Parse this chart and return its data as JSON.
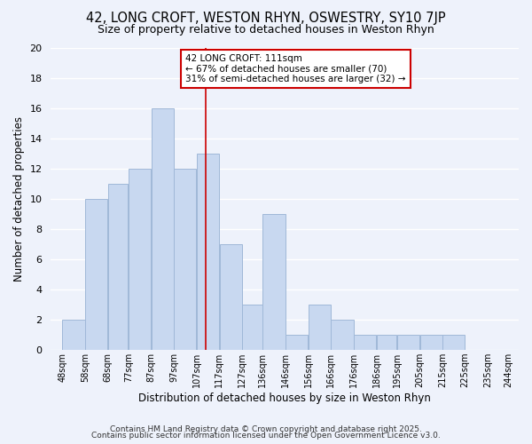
{
  "title": "42, LONG CROFT, WESTON RHYN, OSWESTRY, SY10 7JP",
  "subtitle": "Size of property relative to detached houses in Weston Rhyn",
  "xlabel": "Distribution of detached houses by size in Weston Rhyn",
  "ylabel": "Number of detached properties",
  "bar_color": "#c8d8f0",
  "bar_edge_color": "#a0b8d8",
  "background_color": "#eef2fb",
  "grid_color": "#ffffff",
  "bins": [
    48,
    58,
    68,
    77,
    87,
    97,
    107,
    117,
    127,
    136,
    146,
    156,
    166,
    176,
    186,
    195,
    205,
    215,
    225,
    235,
    244
  ],
  "bin_labels": [
    "48sqm",
    "58sqm",
    "68sqm",
    "77sqm",
    "87sqm",
    "97sqm",
    "107sqm",
    "117sqm",
    "127sqm",
    "136sqm",
    "146sqm",
    "156sqm",
    "166sqm",
    "176sqm",
    "186sqm",
    "195sqm",
    "205sqm",
    "215sqm",
    "225sqm",
    "235sqm",
    "244sqm"
  ],
  "counts": [
    2,
    10,
    11,
    12,
    16,
    12,
    13,
    7,
    3,
    9,
    1,
    3,
    2,
    1,
    1,
    1,
    1,
    1,
    0,
    0
  ],
  "ylim": [
    0,
    20
  ],
  "yticks": [
    0,
    2,
    4,
    6,
    8,
    10,
    12,
    14,
    16,
    18,
    20
  ],
  "vline_x": 111,
  "vline_color": "#cc0000",
  "annotation_text": "42 LONG CROFT: 111sqm\n← 67% of detached houses are smaller (70)\n31% of semi-detached houses are larger (32) →",
  "annotation_box_edge": "#cc0000",
  "footer1": "Contains HM Land Registry data © Crown copyright and database right 2025.",
  "footer2": "Contains public sector information licensed under the Open Government Licence v3.0.",
  "title_fontsize": 10.5,
  "subtitle_fontsize": 9,
  "footer_fontsize": 6.5
}
